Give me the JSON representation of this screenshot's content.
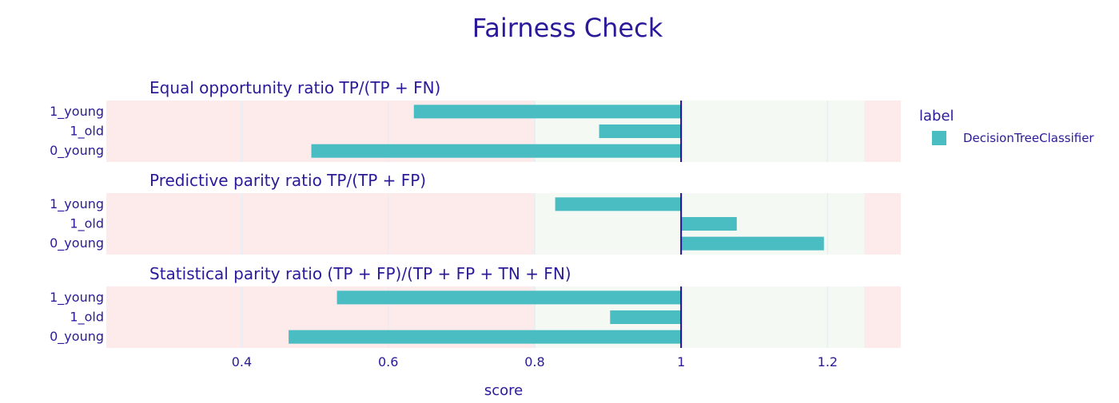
{
  "chart_data": {
    "type": "bar",
    "orientation": "horizontal",
    "title": "Fairness Check",
    "xlabel": "score",
    "xlim": [
      0.215,
      1.3
    ],
    "xticks": [
      0.4,
      0.6,
      0.8,
      1,
      1.2
    ],
    "xtick_labels": [
      "0.4",
      "0.6",
      "0.8",
      "1",
      "1.2"
    ],
    "reference_value": 1,
    "fair_range": [
      0.8,
      1.25
    ],
    "grid": true,
    "legend": {
      "title": "label",
      "position": "right",
      "entries": [
        "DecisionTreeClassifier"
      ]
    },
    "categories": [
      "1_young",
      "1_old",
      "0_young"
    ],
    "series_color": "#4abdc3",
    "colors": {
      "title": "#2a1a9a",
      "unfair_zone": "#fdeaea",
      "fair_zone": "#f4f9f3",
      "reference_line": "#1e0f8a"
    },
    "panels": [
      {
        "title": "Equal opportunity ratio     TP/(TP + FN)",
        "series": [
          {
            "name": "DecisionTreeClassifier",
            "values": [
              0.635,
              0.888,
              0.495
            ]
          }
        ]
      },
      {
        "title": "Predictive parity ratio     TP/(TP + FP)",
        "series": [
          {
            "name": "DecisionTreeClassifier",
            "values": [
              0.828,
              1.076,
              1.195
            ]
          }
        ]
      },
      {
        "title": "Statistical parity ratio   (TP + FP)/(TP + FP + TN + FN)",
        "series": [
          {
            "name": "DecisionTreeClassifier",
            "values": [
              0.53,
              0.903,
              0.464
            ]
          }
        ]
      }
    ]
  }
}
